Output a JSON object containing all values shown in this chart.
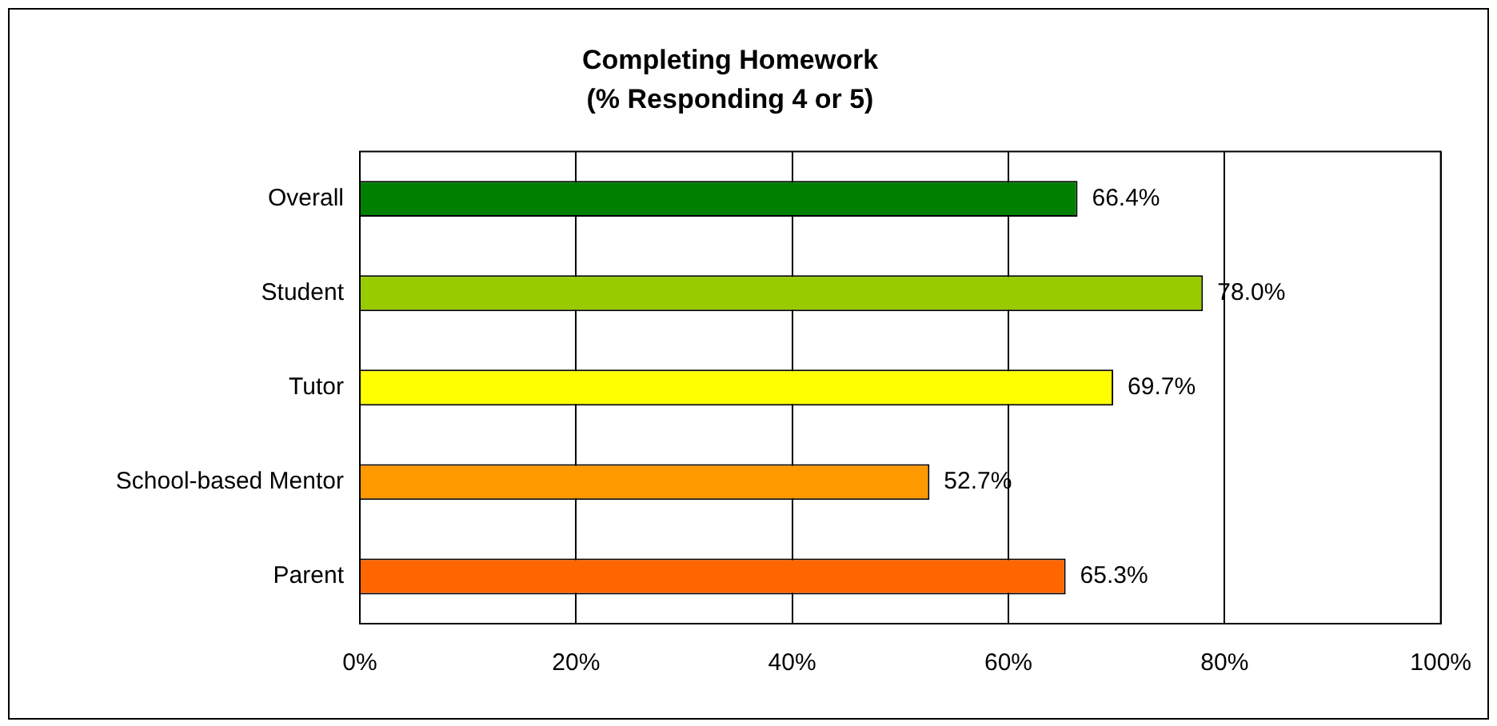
{
  "chart_data": {
    "type": "bar",
    "orientation": "horizontal",
    "title": "Completing Homework",
    "subtitle": "(% Responding 4 or 5)",
    "categories": [
      "Overall",
      "Student",
      "Tutor",
      "School-based Mentor",
      "Parent"
    ],
    "values": [
      66.4,
      78.0,
      69.7,
      52.7,
      65.3
    ],
    "colors": [
      "#008000",
      "#99cc00",
      "#ffff00",
      "#ff9900",
      "#ff6600"
    ],
    "value_labels": [
      "66.4%",
      "78.0%",
      "69.7%",
      "52.7%",
      "65.3%"
    ],
    "xlim": [
      0,
      100
    ],
    "xticks": [
      {
        "value": 0,
        "label": "0%"
      },
      {
        "value": 20,
        "label": "20%"
      },
      {
        "value": 40,
        "label": "40%"
      },
      {
        "value": 60,
        "label": "60%"
      },
      {
        "value": 80,
        "label": "80%"
      },
      {
        "value": 100,
        "label": "100%"
      }
    ],
    "grid": "x"
  }
}
